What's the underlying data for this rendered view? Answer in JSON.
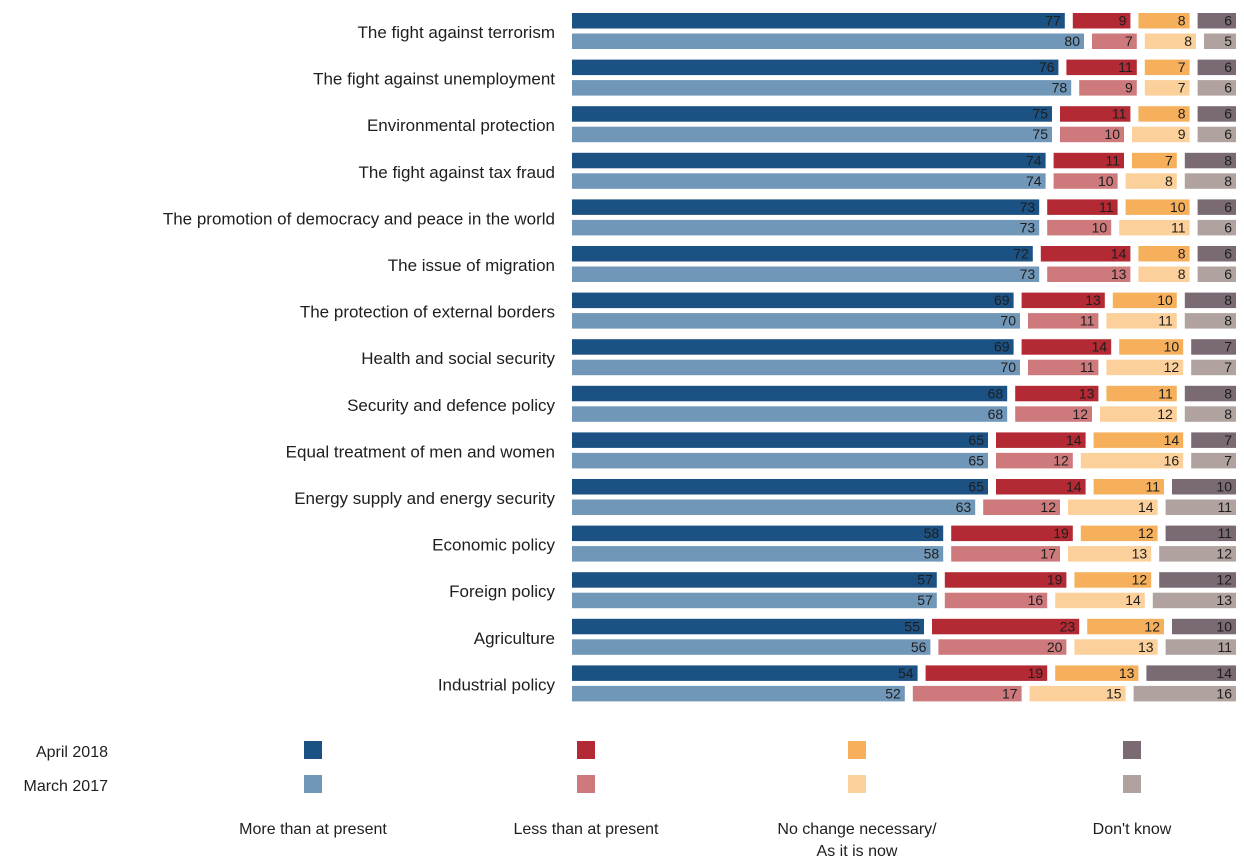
{
  "chart_data": {
    "type": "bar",
    "stacked": true,
    "orientation": "horizontal",
    "series_groups": [
      "April 2018",
      "March 2017"
    ],
    "responses": [
      "More than at present",
      "Less than at present",
      "No change necessary/ As it is now",
      "Don't know"
    ],
    "response_lines": [
      [
        "More than at present"
      ],
      [
        "Less than at present"
      ],
      [
        "No change necessary/",
        "As it is now"
      ],
      [
        "Don't know"
      ]
    ],
    "colors": {
      "April 2018": [
        "#1c5184",
        "#b32a34",
        "#f6b05c",
        "#7a6a73"
      ],
      "March 2017": [
        "#7096b8",
        "#ce7a7d",
        "#fbd09a",
        "#b0a29f"
      ]
    },
    "categories": [
      "The fight against terrorism",
      "The fight against unemployment",
      "Environmental protection",
      "The fight against tax fraud",
      "The promotion of democracy and peace in the world",
      "The issue of migration",
      "The protection of external borders",
      "Health and social security",
      "Security and defence policy",
      "Equal treatment of men and women",
      "Energy supply and energy security",
      "Economic policy",
      "Foreign policy",
      "Agriculture",
      "Industrial policy"
    ],
    "values": {
      "April 2018": [
        [
          77,
          9,
          8,
          6
        ],
        [
          76,
          11,
          7,
          6
        ],
        [
          75,
          11,
          8,
          6
        ],
        [
          74,
          11,
          7,
          8
        ],
        [
          73,
          11,
          10,
          6
        ],
        [
          72,
          14,
          8,
          6
        ],
        [
          69,
          13,
          10,
          8
        ],
        [
          69,
          14,
          10,
          7
        ],
        [
          68,
          13,
          11,
          8
        ],
        [
          65,
          14,
          14,
          7
        ],
        [
          65,
          14,
          11,
          10
        ],
        [
          58,
          19,
          12,
          11
        ],
        [
          57,
          19,
          12,
          12
        ],
        [
          55,
          23,
          12,
          10
        ],
        [
          54,
          19,
          13,
          14
        ]
      ],
      "March 2017": [
        [
          80,
          7,
          8,
          5
        ],
        [
          78,
          9,
          7,
          6
        ],
        [
          75,
          10,
          9,
          6
        ],
        [
          74,
          10,
          8,
          8
        ],
        [
          73,
          10,
          11,
          6
        ],
        [
          73,
          13,
          8,
          6
        ],
        [
          70,
          11,
          11,
          8
        ],
        [
          70,
          11,
          12,
          7
        ],
        [
          68,
          12,
          12,
          8
        ],
        [
          65,
          12,
          16,
          7
        ],
        [
          63,
          12,
          14,
          11
        ],
        [
          58,
          17,
          13,
          12
        ],
        [
          57,
          16,
          14,
          13
        ],
        [
          56,
          20,
          13,
          11
        ],
        [
          52,
          17,
          15,
          16
        ]
      ]
    },
    "xlim": [
      0,
      100
    ],
    "legend_position": "bottom"
  }
}
